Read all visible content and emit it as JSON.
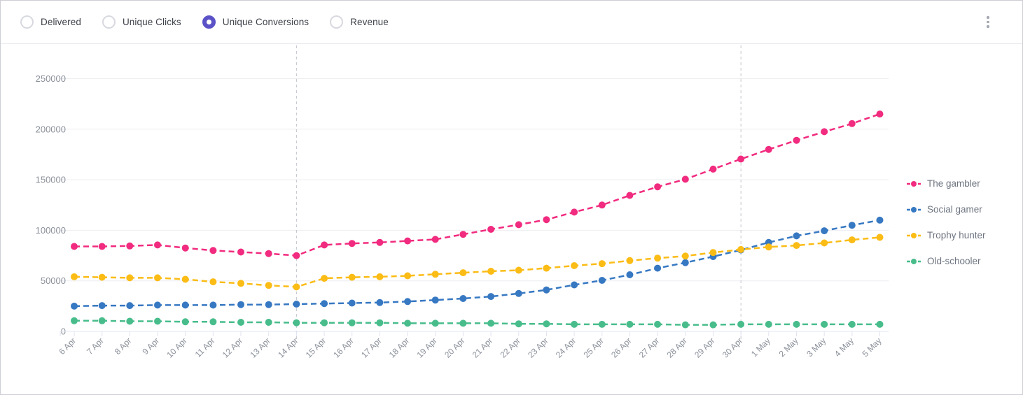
{
  "toolbar": {
    "options": [
      {
        "label": "Delivered",
        "selected": false
      },
      {
        "label": "Unique Clicks",
        "selected": false
      },
      {
        "label": "Unique Conversions",
        "selected": true
      },
      {
        "label": "Revenue",
        "selected": false
      }
    ],
    "menu_icon": "kebab-vertical-icon"
  },
  "colors": {
    "accent_purple": "#5B52C7",
    "grid_line": "#ededf1",
    "axis_line": "#e1e4f2",
    "marker_line": "#c2c4cc",
    "tick_label": "#8b909a"
  },
  "chart_data": {
    "type": "line",
    "line_style": "dashed",
    "title": "",
    "xlabel": "",
    "ylabel": "",
    "categories": [
      "6 Apr",
      "7 Apr",
      "8 Apr",
      "9 Apr",
      "10 Apr",
      "11 Apr",
      "12 Apr",
      "13 Apr",
      "14 Apr",
      "15 Apr",
      "16 Apr",
      "17 Apr",
      "18 Apr",
      "19 Apr",
      "20 Apr",
      "21 Apr",
      "22 Apr",
      "23 Apr",
      "24 Apr",
      "25 Apr",
      "26 Apr",
      "27 Apr",
      "28 Apr",
      "29 Apr",
      "30 Apr",
      "1 May",
      "2 May",
      "3 May",
      "4 May",
      "5 May"
    ],
    "series": [
      {
        "name": "The gambler",
        "color": "#F12B7F",
        "values": [
          84000,
          84000,
          84500,
          85500,
          82500,
          80000,
          78500,
          77000,
          75000,
          85500,
          87000,
          88000,
          89500,
          91000,
          96000,
          101000,
          105500,
          110500,
          118000,
          125000,
          134500,
          143000,
          150500,
          160500,
          170500,
          180000,
          189000,
          197500,
          205500,
          215000
        ]
      },
      {
        "name": "Social gamer",
        "color": "#3778C2",
        "values": [
          25000,
          25500,
          25500,
          26000,
          26000,
          26000,
          26500,
          26500,
          27000,
          27500,
          28000,
          28500,
          29500,
          31000,
          32500,
          34500,
          37500,
          41000,
          46000,
          50500,
          56000,
          62500,
          68000,
          74000,
          80500,
          88000,
          94500,
          99500,
          105000,
          110000
        ]
      },
      {
        "name": "Trophy hunter",
        "color": "#FBBC16",
        "values": [
          54000,
          53500,
          53000,
          53000,
          51500,
          49000,
          47500,
          45500,
          44000,
          52500,
          53500,
          54000,
          55000,
          56500,
          58000,
          59500,
          60500,
          62500,
          65000,
          67000,
          70000,
          72500,
          74500,
          78000,
          81000,
          83500,
          85000,
          87500,
          90500,
          93000
        ]
      },
      {
        "name": "Old-schooler",
        "color": "#48BD8B",
        "values": [
          10500,
          10500,
          10000,
          10000,
          9500,
          9500,
          9000,
          9000,
          8500,
          8500,
          8500,
          8500,
          8000,
          8000,
          8000,
          8000,
          7500,
          7500,
          7000,
          7000,
          7000,
          7000,
          6500,
          6500,
          7000,
          7000,
          7000,
          7000,
          7000,
          7000
        ]
      }
    ],
    "ylim": [
      0,
      250000
    ],
    "y_ticks": [
      0,
      50000,
      100000,
      150000,
      200000,
      250000
    ],
    "grid": "horizontal",
    "legend_position": "right",
    "vertical_markers": [
      "14 Apr",
      "30 Apr"
    ]
  }
}
